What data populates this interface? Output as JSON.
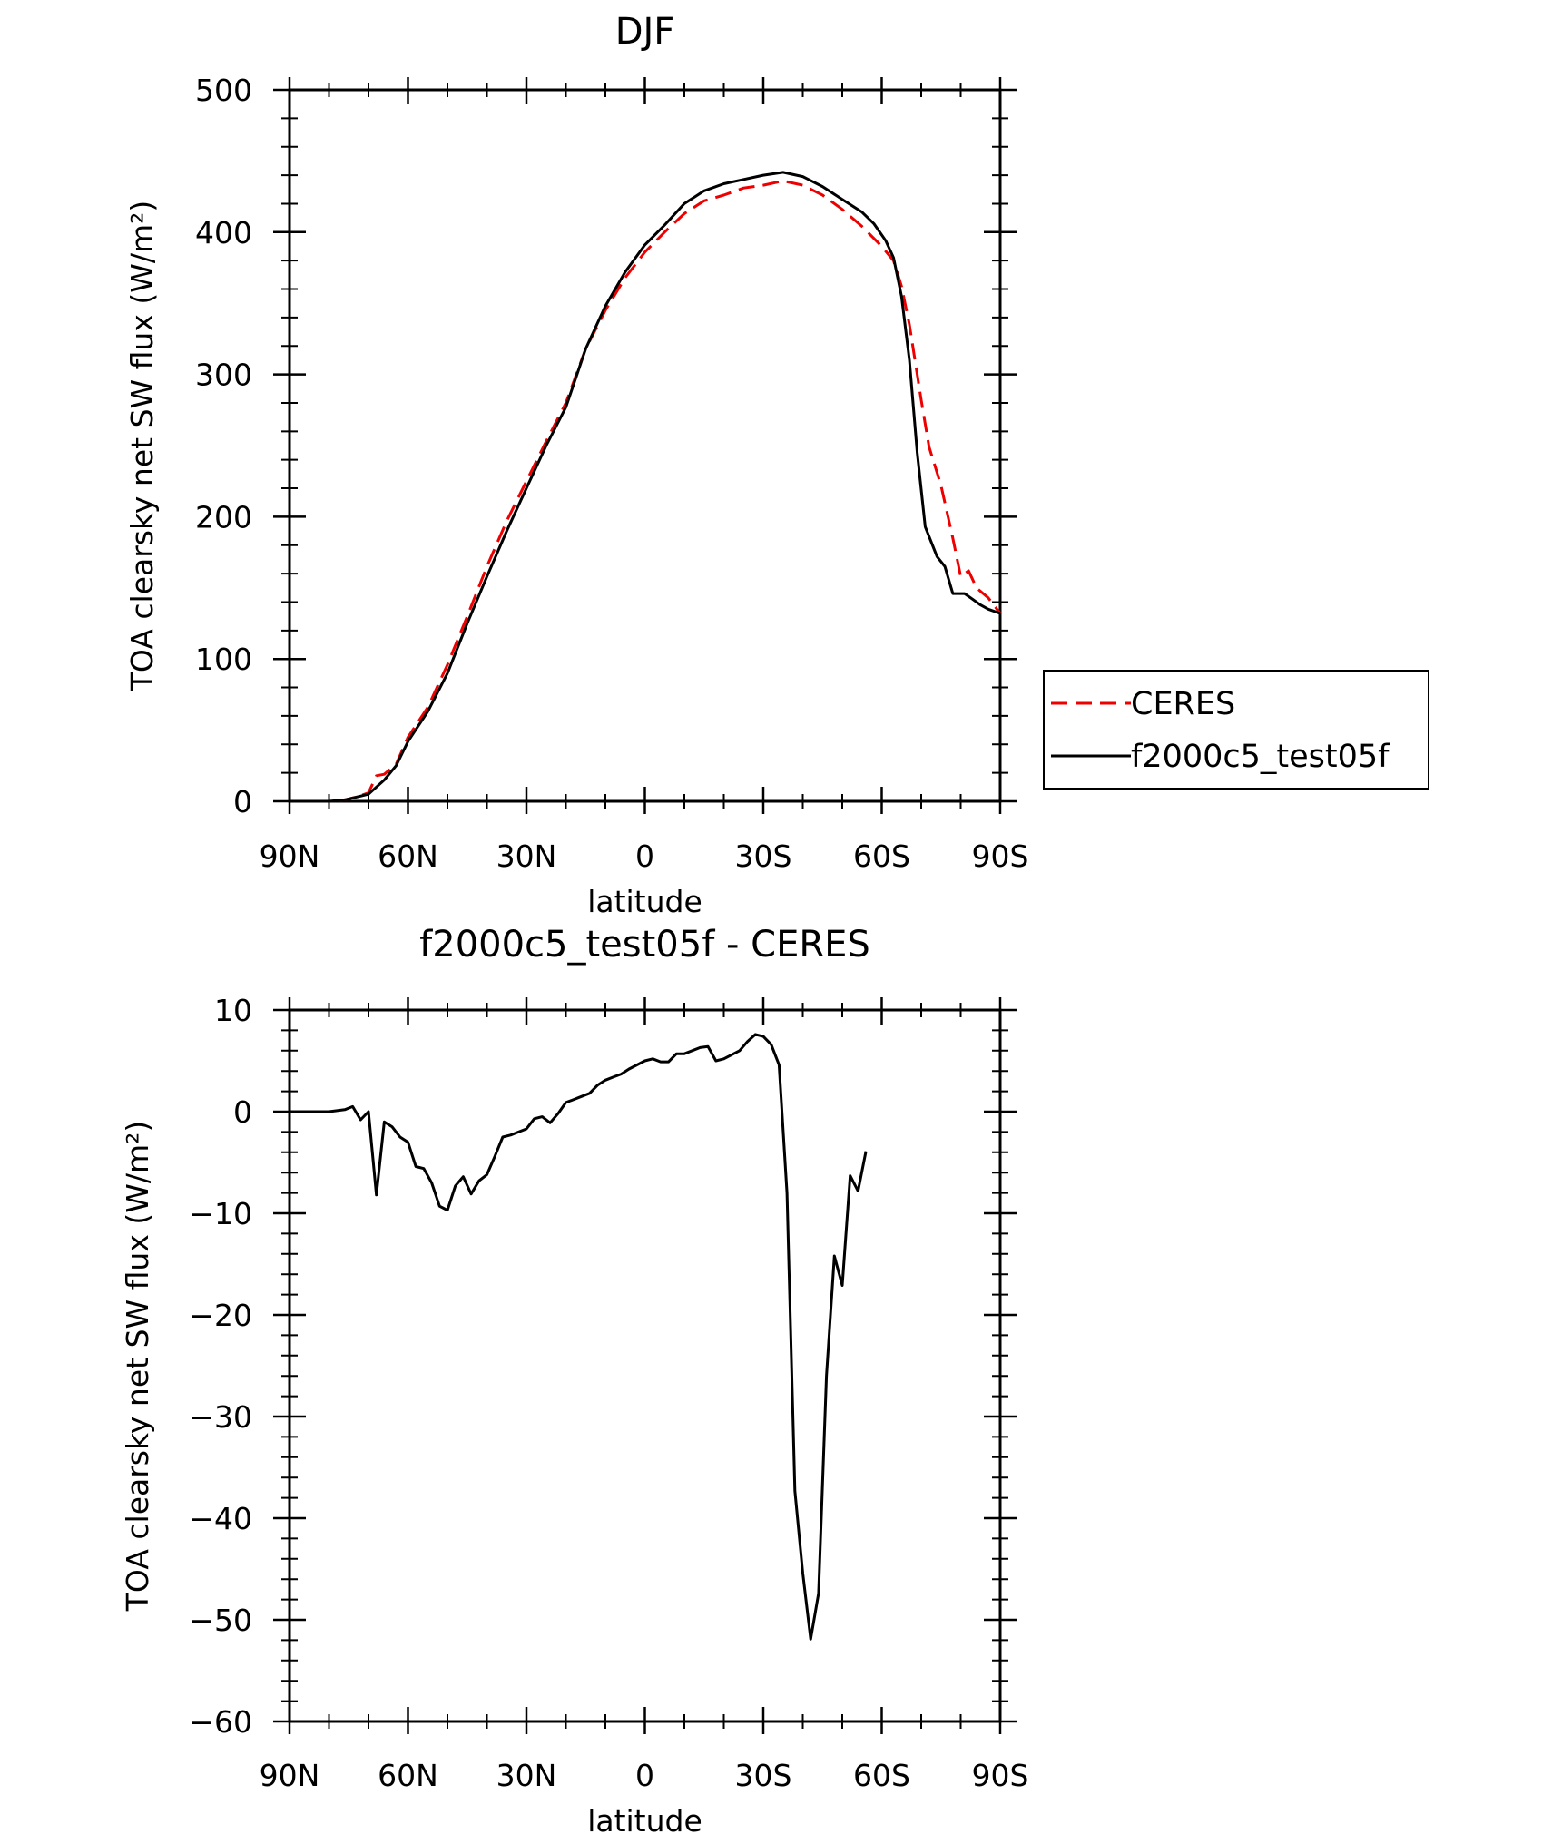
{
  "chart_data": [
    {
      "type": "line",
      "title": "DJF",
      "xlabel": "latitude",
      "ylabel": "TOA clearsky net SW flux (W/m²)",
      "xlim": [
        90,
        -90
      ],
      "ylim": [
        0,
        500
      ],
      "x_ticks": [
        90,
        60,
        30,
        0,
        -30,
        -60,
        -90
      ],
      "x_tick_labels": [
        "90N",
        "60N",
        "30N",
        "0",
        "30S",
        "60S",
        "90S"
      ],
      "y_ticks": [
        0,
        100,
        200,
        300,
        400,
        500
      ],
      "y_tick_labels": [
        "0",
        "100",
        "200",
        "300",
        "400",
        "500"
      ],
      "legend": {
        "position": "right"
      },
      "series": [
        {
          "name": "CERES",
          "color": "#ee0000",
          "dash": "dashed",
          "points": [
            [
              90,
              0
            ],
            [
              80,
              0
            ],
            [
              76,
              1
            ],
            [
              73,
              3
            ],
            [
              70,
              6
            ],
            [
              68,
              18
            ],
            [
              66,
              19
            ],
            [
              63,
              26
            ],
            [
              60,
              45
            ],
            [
              55,
              66
            ],
            [
              50,
              96
            ],
            [
              45,
              130
            ],
            [
              40,
              165
            ],
            [
              35,
              197
            ],
            [
              30,
              225
            ],
            [
              25,
              253
            ],
            [
              20,
              280
            ],
            [
              15,
              318
            ],
            [
              10,
              345
            ],
            [
              5,
              368
            ],
            [
              0,
              386
            ],
            [
              -5,
              400
            ],
            [
              -10,
              413
            ],
            [
              -15,
              422
            ],
            [
              -20,
              426
            ],
            [
              -25,
              431
            ],
            [
              -30,
              433
            ],
            [
              -35,
              436
            ],
            [
              -40,
              433
            ],
            [
              -45,
              426
            ],
            [
              -50,
              416
            ],
            [
              -55,
              404
            ],
            [
              -60,
              390
            ],
            [
              -63,
              380
            ],
            [
              -65,
              362
            ],
            [
              -67,
              335
            ],
            [
              -70,
              282
            ],
            [
              -72,
              249
            ],
            [
              -75,
              222
            ],
            [
              -78,
              185
            ],
            [
              -80,
              158
            ],
            [
              -82,
              162
            ],
            [
              -84,
              150
            ],
            [
              -87,
              143
            ],
            [
              -90,
              132
            ]
          ]
        },
        {
          "name": "f2000c5_test05f",
          "color": "#000000",
          "dash": "solid",
          "points": [
            [
              90,
              0
            ],
            [
              80,
              0
            ],
            [
              76,
              1
            ],
            [
              73,
              3
            ],
            [
              70,
              5
            ],
            [
              68,
              10
            ],
            [
              66,
              15
            ],
            [
              63,
              25
            ],
            [
              60,
              42
            ],
            [
              55,
              63
            ],
            [
              50,
              90
            ],
            [
              45,
              125
            ],
            [
              40,
              158
            ],
            [
              35,
              190
            ],
            [
              30,
              220
            ],
            [
              25,
              250
            ],
            [
              20,
              277
            ],
            [
              15,
              318
            ],
            [
              10,
              348
            ],
            [
              5,
              372
            ],
            [
              0,
              391
            ],
            [
              -5,
              405
            ],
            [
              -10,
              420
            ],
            [
              -15,
              429
            ],
            [
              -20,
              434
            ],
            [
              -25,
              437
            ],
            [
              -30,
              440
            ],
            [
              -35,
              442
            ],
            [
              -40,
              439
            ],
            [
              -45,
              432
            ],
            [
              -50,
              423
            ],
            [
              -55,
              414
            ],
            [
              -58,
              406
            ],
            [
              -61,
              394
            ],
            [
              -63,
              382
            ],
            [
              -65,
              355
            ],
            [
              -67,
              310
            ],
            [
              -69,
              245
            ],
            [
              -71,
              193
            ],
            [
              -74,
              172
            ],
            [
              -76,
              165
            ],
            [
              -78,
              146
            ],
            [
              -81,
              146
            ],
            [
              -83,
              142
            ],
            [
              -85,
              138
            ],
            [
              -87,
              135
            ],
            [
              -90,
              132
            ]
          ]
        }
      ]
    },
    {
      "type": "line",
      "title": "f2000c5_test05f - CERES",
      "xlabel": "latitude",
      "ylabel": "TOA clearsky net SW flux (W/m²)",
      "xlim": [
        90,
        -90
      ],
      "ylim": [
        -60,
        10
      ],
      "x_ticks": [
        90,
        60,
        30,
        0,
        -30,
        -60,
        -90
      ],
      "x_tick_labels": [
        "90N",
        "60N",
        "30N",
        "0",
        "30S",
        "60S",
        "90S"
      ],
      "y_ticks": [
        -60,
        -50,
        -40,
        -30,
        -20,
        -10,
        0,
        10
      ],
      "y_tick_labels": [
        "−60",
        "−50",
        "−40",
        "−30",
        "−20",
        "−10",
        "0",
        "10"
      ],
      "series": [
        {
          "name": "",
          "color": "#000000",
          "dash": "solid",
          "points": [
            [
              90,
              0
            ],
            [
              80,
              0
            ],
            [
              76,
              0.2
            ],
            [
              74,
              0.5
            ],
            [
              72,
              -0.8
            ],
            [
              70,
              0
            ],
            [
              68,
              -8.2
            ],
            [
              66,
              -1
            ],
            [
              64,
              -1.5
            ],
            [
              62,
              -2.5
            ],
            [
              60,
              -3
            ],
            [
              58,
              -5.4
            ],
            [
              56,
              -5.6
            ],
            [
              54,
              -7
            ],
            [
              52,
              -9.3
            ],
            [
              50,
              -9.7
            ],
            [
              48,
              -7.3
            ],
            [
              46,
              -6.4
            ],
            [
              44,
              -8.1
            ],
            [
              42,
              -6.8
            ],
            [
              40,
              -6.2
            ],
            [
              38,
              -4.4
            ],
            [
              36,
              -2.5
            ],
            [
              34,
              -2.3
            ],
            [
              32,
              -2
            ],
            [
              30,
              -1.7
            ],
            [
              28,
              -0.7
            ],
            [
              26,
              -0.5
            ],
            [
              24,
              -1.1
            ],
            [
              22,
              -0.2
            ],
            [
              20,
              0.9
            ],
            [
              18,
              1.2
            ],
            [
              16,
              1.5
            ],
            [
              14,
              1.8
            ],
            [
              12,
              2.6
            ],
            [
              10,
              3.1
            ],
            [
              8,
              3.4
            ],
            [
              6,
              3.7
            ],
            [
              4,
              4.2
            ],
            [
              2,
              4.6
            ],
            [
              0,
              5
            ],
            [
              -2,
              5.2
            ],
            [
              -4,
              4.9
            ],
            [
              -6,
              4.9
            ],
            [
              -8,
              5.7
            ],
            [
              -10,
              5.7
            ],
            [
              -12,
              6
            ],
            [
              -14,
              6.3
            ],
            [
              -16,
              6.4
            ],
            [
              -18,
              5
            ],
            [
              -20,
              5.2
            ],
            [
              -22,
              5.6
            ],
            [
              -24,
              6
            ],
            [
              -26,
              6.9
            ],
            [
              -28,
              7.6
            ],
            [
              -30,
              7.4
            ],
            [
              -32,
              6.6
            ],
            [
              -34,
              4.6
            ],
            [
              -36,
              -8
            ],
            [
              -38,
              -37.3
            ],
            [
              -40,
              -45.4
            ],
            [
              -42,
              -51.9
            ],
            [
              -44,
              -47.4
            ],
            [
              -46,
              -26
            ],
            [
              -48,
              -14.2
            ],
            [
              -50,
              -17.1
            ],
            [
              -52,
              -6.3
            ],
            [
              -54,
              -7.8
            ],
            [
              -56,
              -3.9
            ]
          ]
        }
      ]
    }
  ]
}
